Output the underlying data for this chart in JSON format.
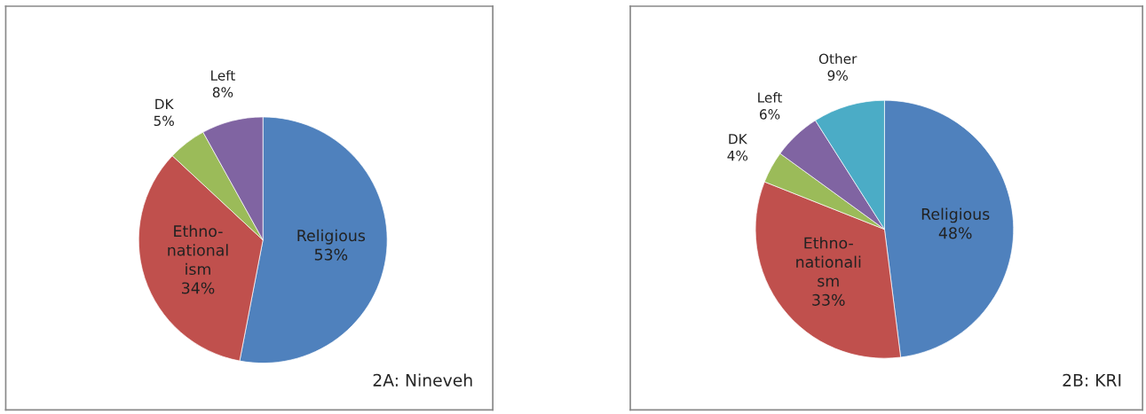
{
  "chart_data": [
    {
      "type": "pie",
      "title": "2A: Nineveh",
      "categories": [
        "Religious",
        "Ethno-\nnational\nism",
        "DK",
        "Left"
      ],
      "values": [
        53,
        34,
        5,
        8
      ],
      "colors": [
        "#4f81bd",
        "#c0504d",
        "#9bbb59",
        "#8064a2"
      ],
      "value_labels": [
        "53%",
        "34%",
        "5%",
        "8%"
      ]
    },
    {
      "type": "pie",
      "title": "2B: KRI",
      "categories": [
        "Religious",
        "Ethno-\nnationali\nsm",
        "DK",
        "Left",
        "Other"
      ],
      "values": [
        48,
        33,
        4,
        6,
        9
      ],
      "colors": [
        "#4f81bd",
        "#c0504d",
        "#9bbb59",
        "#8064a2",
        "#4bacc6"
      ],
      "value_labels": [
        "48%",
        "33%",
        "4%",
        "6%",
        "9%"
      ]
    }
  ]
}
